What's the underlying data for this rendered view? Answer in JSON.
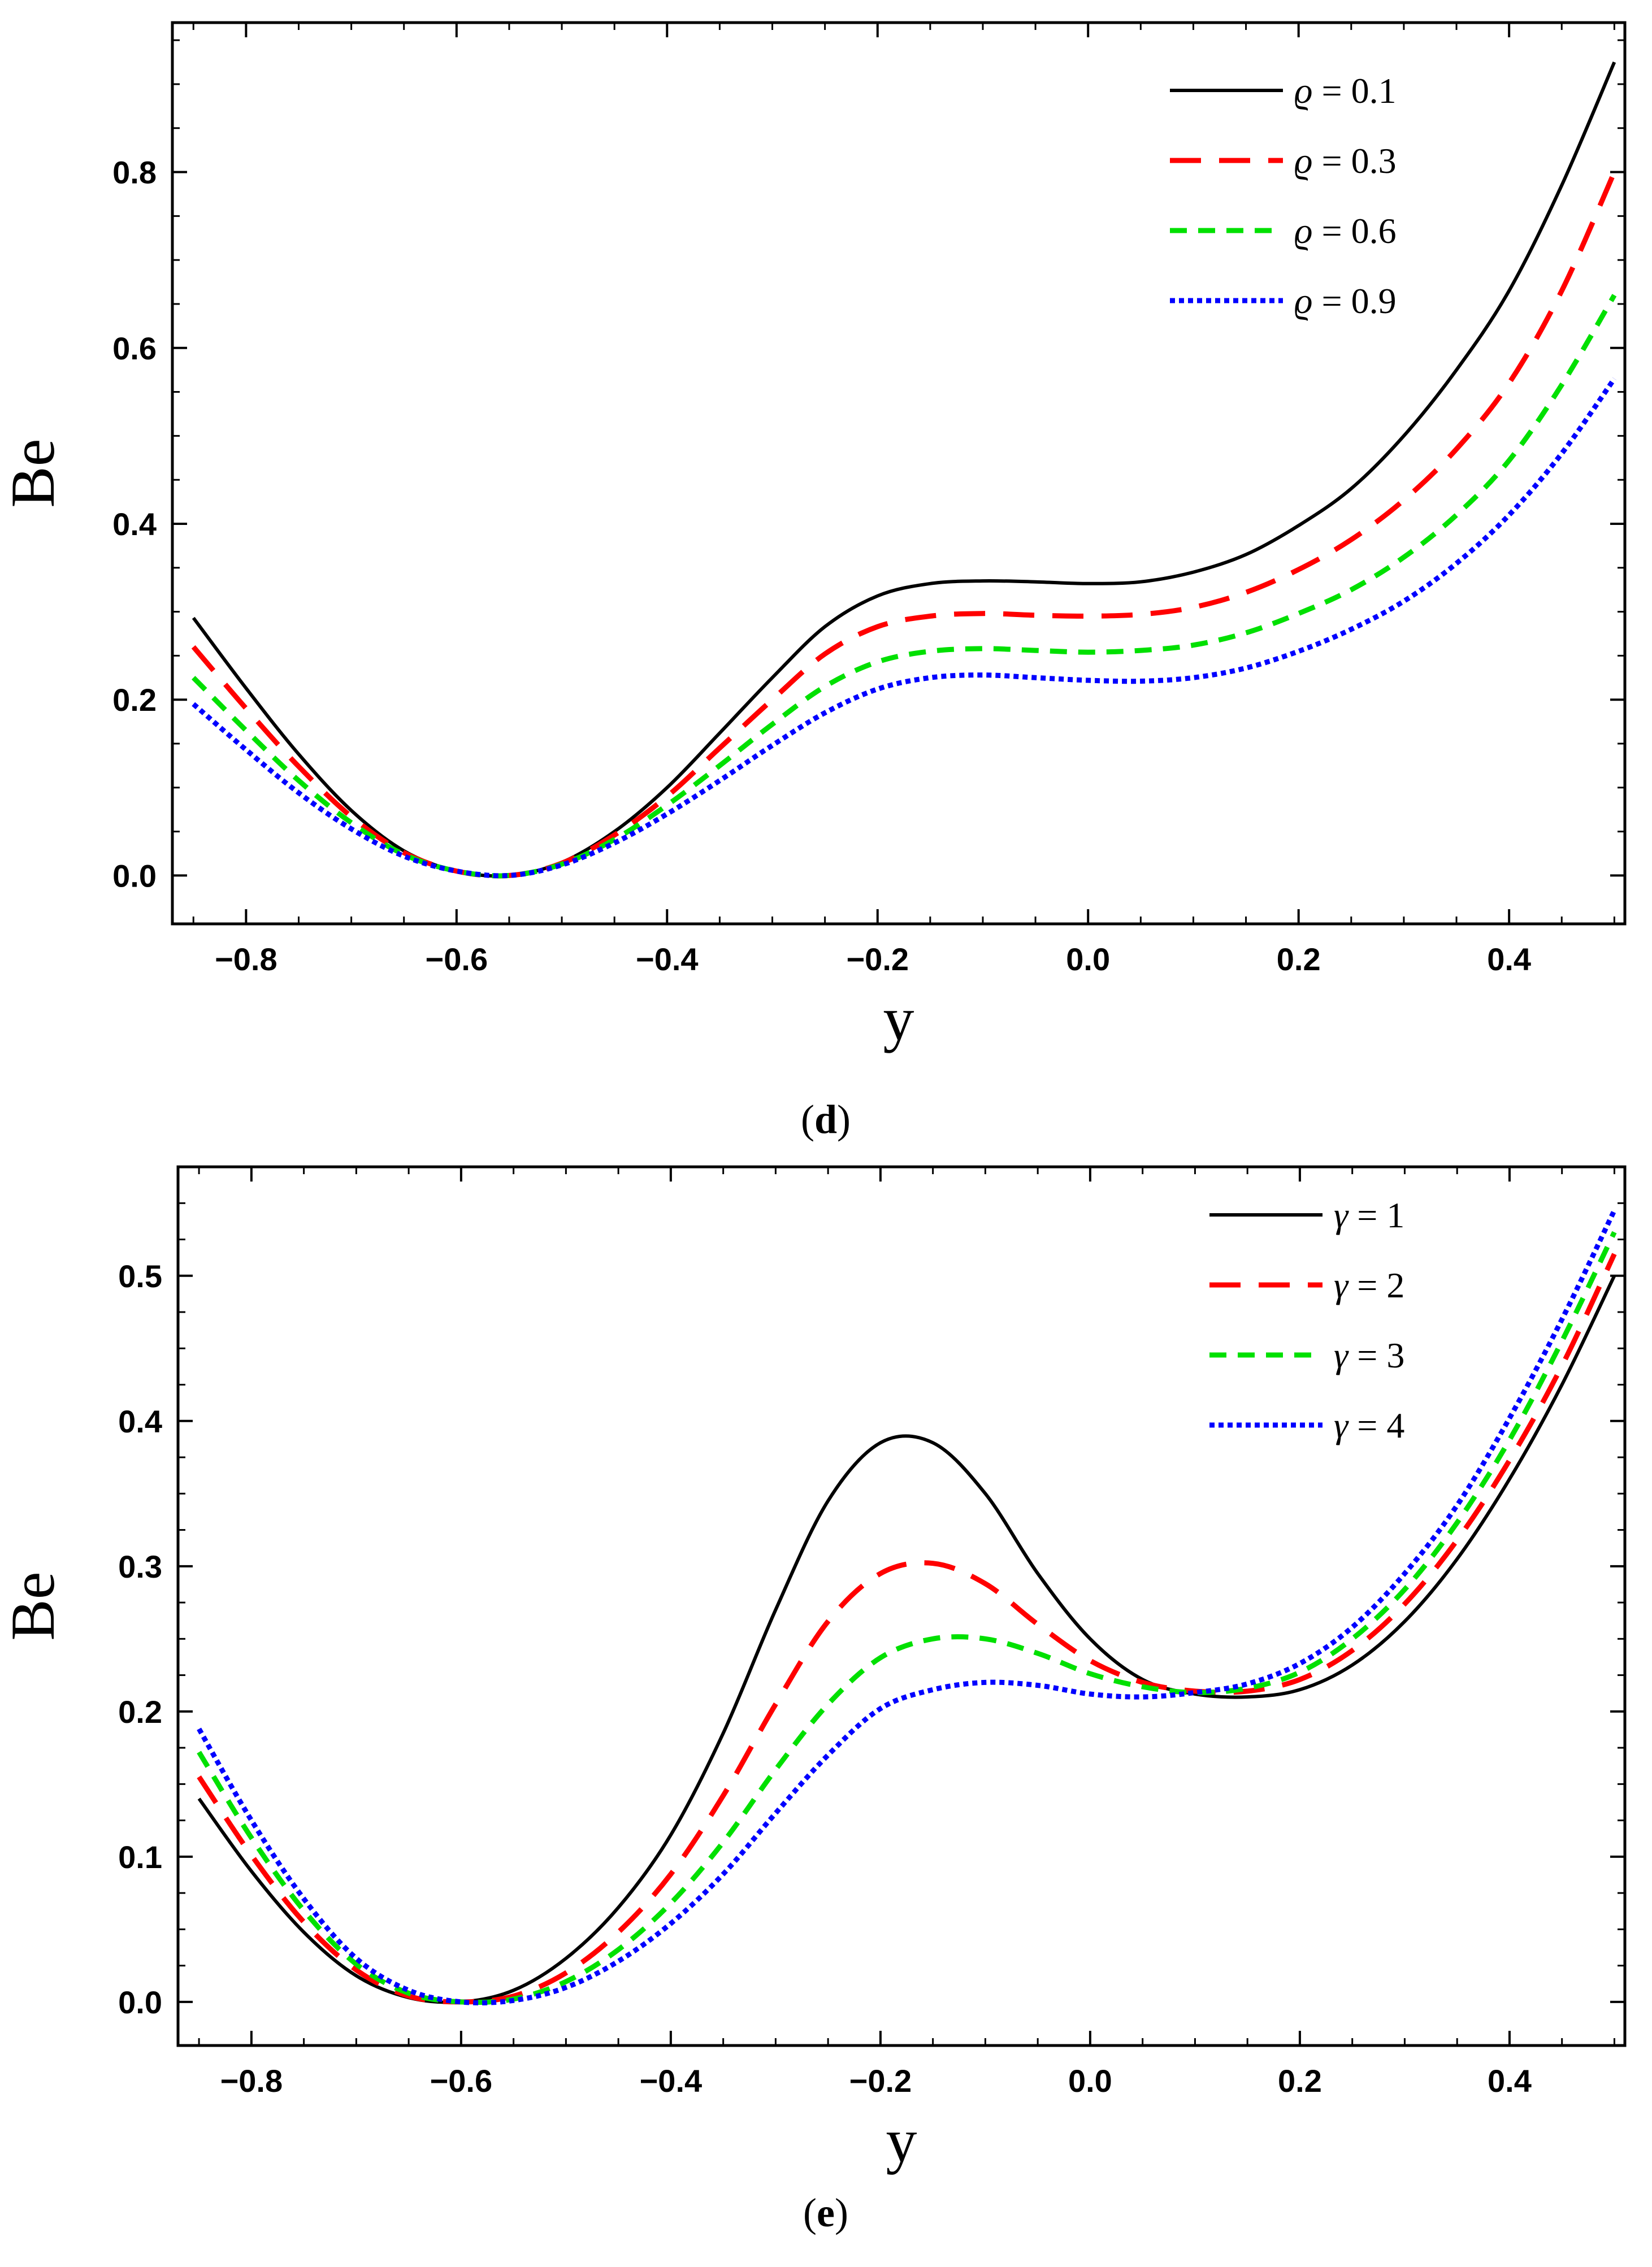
{
  "chart_data": [
    {
      "type": "line",
      "caption": "d",
      "xlabel": "y",
      "ylabel": "Be",
      "xlim": [
        -0.87,
        0.51
      ],
      "ylim": [
        -0.055,
        0.97
      ],
      "xticks": [
        -0.8,
        -0.6,
        -0.4,
        -0.2,
        0.0,
        0.2,
        0.4
      ],
      "xtick_labels": [
        "−0.8",
        "−0.6",
        "−0.4",
        "−0.2",
        "0.0",
        "0.2",
        "0.4"
      ],
      "yticks": [
        0.0,
        0.2,
        0.4,
        0.6,
        0.8
      ],
      "ytick_labels": [
        "0.0",
        "0.2",
        "0.4",
        "0.6",
        "0.8"
      ],
      "legend_position": "top-right",
      "x": [
        -0.85,
        -0.8,
        -0.75,
        -0.7,
        -0.65,
        -0.6,
        -0.55,
        -0.5,
        -0.45,
        -0.4,
        -0.35,
        -0.3,
        -0.25,
        -0.2,
        -0.15,
        -0.1,
        -0.05,
        0.0,
        0.05,
        0.1,
        0.15,
        0.2,
        0.25,
        0.3,
        0.35,
        0.4,
        0.45,
        0.5
      ],
      "series": [
        {
          "name": "ϱ = 0.1",
          "symbol": "ϱ",
          "value": "0.1",
          "color": "#000000",
          "style": "solid",
          "values": [
            0.293,
            0.213,
            0.138,
            0.074,
            0.028,
            0.005,
            0.0,
            0.015,
            0.05,
            0.1,
            0.162,
            0.225,
            0.283,
            0.318,
            0.332,
            0.335,
            0.334,
            0.332,
            0.334,
            0.345,
            0.365,
            0.398,
            0.44,
            0.5,
            0.575,
            0.665,
            0.785,
            0.925
          ]
        },
        {
          "name": "ϱ = 0.3",
          "symbol": "ϱ",
          "value": "0.3",
          "color": "#ff0000",
          "style": "dashed",
          "values": [
            0.26,
            0.19,
            0.124,
            0.067,
            0.026,
            0.005,
            0.0,
            0.014,
            0.046,
            0.09,
            0.145,
            0.2,
            0.252,
            0.283,
            0.295,
            0.298,
            0.296,
            0.295,
            0.297,
            0.305,
            0.322,
            0.348,
            0.382,
            0.427,
            0.485,
            0.56,
            0.665,
            0.8
          ]
        },
        {
          "name": "ϱ = 0.6",
          "symbol": "ϱ",
          "value": "0.6",
          "color": "#00e000",
          "style": "short-dashed",
          "values": [
            0.225,
            0.165,
            0.108,
            0.06,
            0.024,
            0.005,
            0.0,
            0.013,
            0.041,
            0.08,
            0.125,
            0.172,
            0.215,
            0.243,
            0.255,
            0.258,
            0.256,
            0.254,
            0.256,
            0.262,
            0.276,
            0.298,
            0.325,
            0.362,
            0.41,
            0.472,
            0.558,
            0.66
          ]
        },
        {
          "name": "ϱ = 0.9",
          "symbol": "ϱ",
          "value": "0.9",
          "color": "#0000ff",
          "style": "dotted",
          "values": [
            0.195,
            0.143,
            0.094,
            0.053,
            0.022,
            0.005,
            0.0,
            0.012,
            0.037,
            0.07,
            0.108,
            0.148,
            0.185,
            0.212,
            0.225,
            0.228,
            0.225,
            0.222,
            0.221,
            0.225,
            0.236,
            0.255,
            0.28,
            0.312,
            0.355,
            0.41,
            0.48,
            0.565
          ]
        }
      ]
    },
    {
      "type": "line",
      "caption": "e",
      "xlabel": "y",
      "ylabel": "Be",
      "xlim": [
        -0.87,
        0.51
      ],
      "ylim": [
        -0.03,
        0.575
      ],
      "xticks": [
        -0.8,
        -0.6,
        -0.4,
        -0.2,
        0.0,
        0.2,
        0.4
      ],
      "xtick_labels": [
        "−0.8",
        "−0.6",
        "−0.4",
        "−0.2",
        "0.0",
        "0.2",
        "0.4"
      ],
      "yticks": [
        0.0,
        0.1,
        0.2,
        0.3,
        0.4,
        0.5
      ],
      "ytick_labels": [
        "0.0",
        "0.1",
        "0.2",
        "0.3",
        "0.4",
        "0.5"
      ],
      "legend_position": "top-right",
      "x": [
        -0.85,
        -0.8,
        -0.75,
        -0.7,
        -0.65,
        -0.6,
        -0.55,
        -0.5,
        -0.45,
        -0.4,
        -0.35,
        -0.3,
        -0.25,
        -0.2,
        -0.15,
        -0.1,
        -0.05,
        0.0,
        0.05,
        0.1,
        0.15,
        0.2,
        0.25,
        0.3,
        0.35,
        0.4,
        0.45,
        0.5
      ],
      "series": [
        {
          "name": "γ = 1",
          "symbol": "γ",
          "value": "1",
          "color": "#000000",
          "style": "solid",
          "values": [
            0.14,
            0.09,
            0.048,
            0.018,
            0.003,
            0.0,
            0.008,
            0.03,
            0.065,
            0.115,
            0.185,
            0.27,
            0.345,
            0.385,
            0.385,
            0.35,
            0.295,
            0.25,
            0.222,
            0.212,
            0.21,
            0.215,
            0.232,
            0.262,
            0.305,
            0.36,
            0.425,
            0.5
          ]
        },
        {
          "name": "γ = 2",
          "symbol": "γ",
          "value": "2",
          "color": "#ff0000",
          "style": "dashed",
          "values": [
            0.155,
            0.101,
            0.055,
            0.022,
            0.004,
            0.0,
            0.004,
            0.02,
            0.048,
            0.088,
            0.142,
            0.205,
            0.262,
            0.295,
            0.302,
            0.288,
            0.26,
            0.235,
            0.22,
            0.214,
            0.214,
            0.222,
            0.242,
            0.274,
            0.318,
            0.373,
            0.438,
            0.515
          ]
        },
        {
          "name": "γ = 3",
          "symbol": "γ",
          "value": "3",
          "color": "#00e000",
          "style": "short-dashed",
          "values": [
            0.172,
            0.113,
            0.063,
            0.026,
            0.006,
            0.0,
            0.002,
            0.014,
            0.036,
            0.068,
            0.11,
            0.16,
            0.205,
            0.237,
            0.25,
            0.25,
            0.24,
            0.226,
            0.217,
            0.213,
            0.216,
            0.227,
            0.25,
            0.284,
            0.33,
            0.387,
            0.455,
            0.53
          ]
        },
        {
          "name": "γ = 4",
          "symbol": "γ",
          "value": "4",
          "color": "#0000ff",
          "style": "dotted",
          "values": [
            0.188,
            0.125,
            0.071,
            0.03,
            0.008,
            0.0,
            0.001,
            0.01,
            0.028,
            0.054,
            0.088,
            0.13,
            0.17,
            0.202,
            0.215,
            0.22,
            0.218,
            0.212,
            0.21,
            0.213,
            0.219,
            0.233,
            0.258,
            0.295,
            0.342,
            0.402,
            0.47,
            0.545
          ]
        }
      ]
    }
  ]
}
